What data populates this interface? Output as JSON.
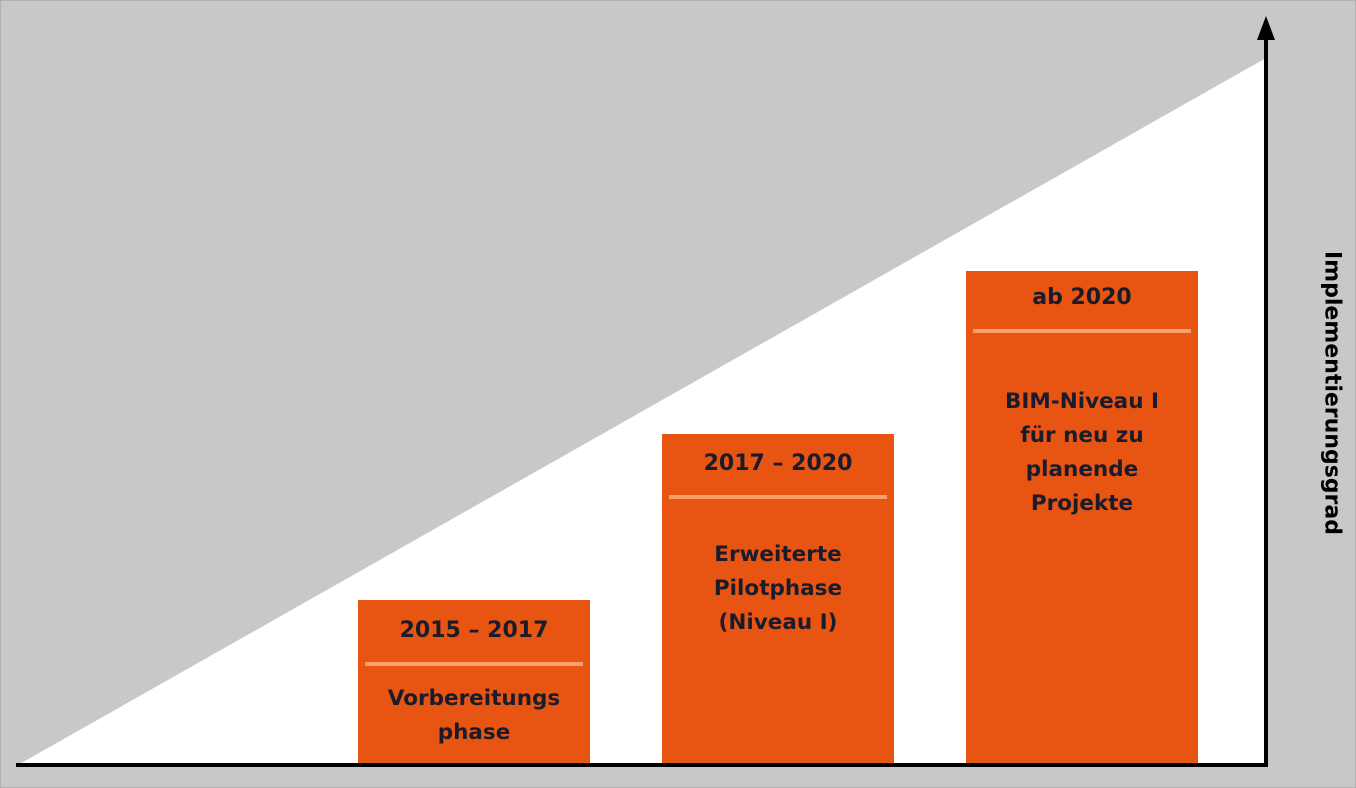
{
  "diagram": {
    "y_axis_label": "Implementierungsgrad",
    "colors": {
      "background_fill": "#c8c8c8",
      "wedge_fill": "#ffffff",
      "box_fill": "#e85412",
      "divider": "#f6a06e",
      "text": "#1a1c2b",
      "axis": "#000000"
    },
    "phases": [
      {
        "period": "2015 – 2017",
        "description": "Vorbereitungs\nphase"
      },
      {
        "period": "2017 – 2020",
        "description": "Erweiterte\nPilotphase\n(Niveau I)"
      },
      {
        "period": "ab 2020",
        "description": "BIM-Niveau I\nfür neu zu\nplanende\nProjekte"
      }
    ]
  }
}
